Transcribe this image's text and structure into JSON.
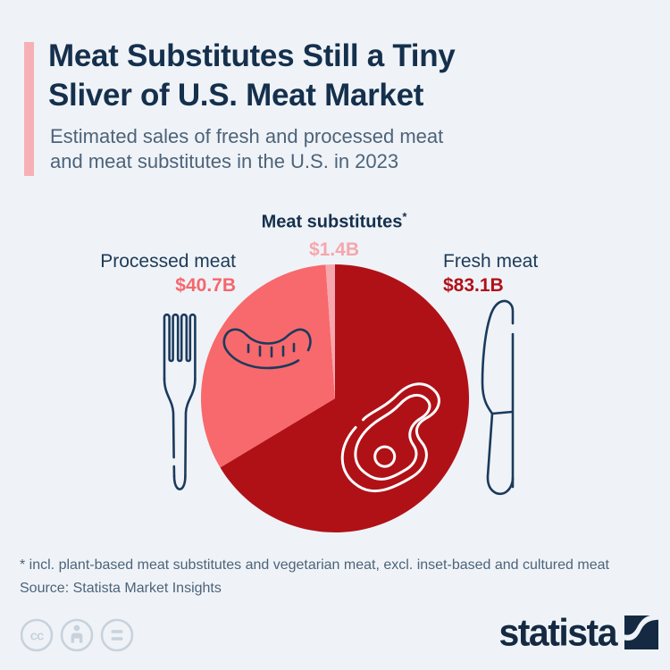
{
  "header": {
    "title_line1": "Meat Substitutes Still a Tiny",
    "title_line2": "Sliver of U.S. Meat Market",
    "subtitle_line1": "Estimated sales of fresh and processed meat",
    "subtitle_line2": "and meat substitutes in the U.S. in 2023",
    "accent_color": "#f8b0b7"
  },
  "chart_data": {
    "type": "pie",
    "title": "Meat Substitutes Still a Tiny Sliver of U.S. Meat Market",
    "subtitle": "Estimated sales of fresh and processed meat and meat substitutes in the U.S. in 2023",
    "unit": "billion U.S. dollars",
    "total": 125.2,
    "start_angle_deg": 0,
    "direction": "clockwise",
    "legend_position": "labels-around-pie",
    "slices": [
      {
        "label": "Fresh meat",
        "value": 83.1,
        "display_value": "$83.1B",
        "color": "#b01117",
        "value_label_color": "#b01117"
      },
      {
        "label": "Processed meat",
        "value": 40.7,
        "display_value": "$40.7B",
        "color": "#f7696c",
        "value_label_color": "#f5676b"
      },
      {
        "label": "Meat substitutes",
        "footnote_marker": "*",
        "value": 1.4,
        "display_value": "$1.4B",
        "color": "#f6a6ad",
        "value_label_color": "#f6a6ad"
      }
    ],
    "illustrations": [
      "fork-icon",
      "sausage-icon",
      "steak-icon",
      "knife-icon"
    ]
  },
  "footer": {
    "footnote": "* incl. plant-based meat substitutes and vegetarian meat, excl. inset-based and cultured meat",
    "source": "Source: Statista Market Insights",
    "license_icons": [
      "cc-icon",
      "by-person-icon",
      "nd-equals-icon"
    ],
    "brand_wordmark": "statista"
  },
  "colors": {
    "background": "#eff3f8",
    "title_navy": "#15304c",
    "subtitle_gray": "#4d6379",
    "outline_navy": "#1b3a5c",
    "cc_gray": "#c8d2dc",
    "brand_navy": "#152a42"
  }
}
